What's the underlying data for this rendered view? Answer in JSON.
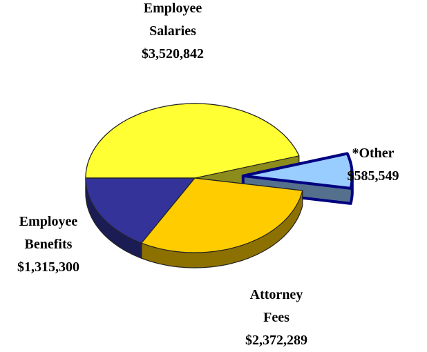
{
  "chart_data": {
    "type": "pie",
    "categories": [
      "Employee Salaries",
      "*Other",
      "Attorney Fees",
      "Employee Benefits"
    ],
    "values": [
      3520842,
      585549,
      2372289,
      1315300
    ],
    "value_labels": [
      "$3,520,842",
      "$585,549",
      "$2,372,289",
      "$1,315,300"
    ],
    "colors": [
      "#ffff33",
      "#99ccff",
      "#ffcc00",
      "#333399"
    ],
    "exploded": [
      "*Other"
    ]
  }
}
